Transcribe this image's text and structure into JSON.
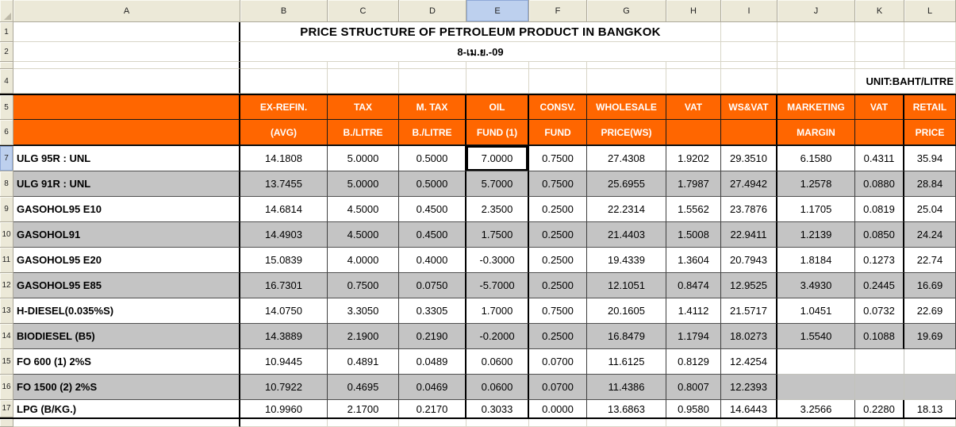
{
  "sheet": {
    "columns": [
      "A",
      "B",
      "C",
      "D",
      "E",
      "F",
      "G",
      "H",
      "I",
      "J",
      "K",
      "L"
    ],
    "active_column": "E",
    "selected_cell": "E7",
    "row_labels_top": [
      "1",
      "2",
      "",
      "4"
    ],
    "header_row_nums": [
      "5",
      "6"
    ],
    "title": "PRICE STRUCTURE OF PETROLEUM PRODUCT IN BANGKOK",
    "date_label": "8-เม.ย.-09",
    "unit_label": "UNIT:BAHT/LITRE",
    "header": {
      "row5": [
        "EX-REFIN.",
        "TAX",
        "M. TAX",
        "OIL",
        "CONSV.",
        "WHOLESALE",
        "VAT",
        "WS&VAT",
        "MARKETING",
        "VAT",
        "RETAIL"
      ],
      "row6": [
        "(AVG)",
        "B./LITRE",
        "B./LITRE",
        "FUND (1)",
        "FUND",
        "PRICE(WS)",
        "",
        "",
        "MARGIN",
        "",
        "PRICE"
      ]
    },
    "products": [
      {
        "num": "7",
        "name": "ULG 95R : UNL",
        "values": [
          "14.1808",
          "5.0000",
          "0.5000",
          "7.0000",
          "0.7500",
          "27.4308",
          "1.9202",
          "29.3510",
          "6.1580",
          "0.4311",
          "35.94"
        ]
      },
      {
        "num": "8",
        "name": "ULG 91R : UNL",
        "values": [
          "13.7455",
          "5.0000",
          "0.5000",
          "5.7000",
          "0.7500",
          "25.6955",
          "1.7987",
          "27.4942",
          "1.2578",
          "0.0880",
          "28.84"
        ]
      },
      {
        "num": "9",
        "name": "GASOHOL95 E10",
        "values": [
          "14.6814",
          "4.5000",
          "0.4500",
          "2.3500",
          "0.2500",
          "22.2314",
          "1.5562",
          "23.7876",
          "1.1705",
          "0.0819",
          "25.04"
        ]
      },
      {
        "num": "10",
        "name": "GASOHOL91",
        "values": [
          "14.4903",
          "4.5000",
          "0.4500",
          "1.7500",
          "0.2500",
          "21.4403",
          "1.5008",
          "22.9411",
          "1.2139",
          "0.0850",
          "24.24"
        ]
      },
      {
        "num": "11",
        "name": "GASOHOL95 E20",
        "values": [
          "15.0839",
          "4.0000",
          "0.4000",
          "-0.3000",
          "0.2500",
          "19.4339",
          "1.3604",
          "20.7943",
          "1.8184",
          "0.1273",
          "22.74"
        ]
      },
      {
        "num": "12",
        "name": "GASOHOL95 E85",
        "values": [
          "16.7301",
          "0.7500",
          "0.0750",
          "-5.7000",
          "0.2500",
          "12.1051",
          "0.8474",
          "12.9525",
          "3.4930",
          "0.2445",
          "16.69"
        ]
      },
      {
        "num": "13",
        "name": "H-DIESEL(0.035%S)",
        "values": [
          "14.0750",
          "3.3050",
          "0.3305",
          "1.7000",
          "0.7500",
          "20.1605",
          "1.4112",
          "21.5717",
          "1.0451",
          "0.0732",
          "22.69"
        ]
      },
      {
        "num": "14",
        "name": "BIODIESEL (B5)",
        "values": [
          "14.3889",
          "2.1900",
          "0.2190",
          "-0.2000",
          "0.2500",
          "16.8479",
          "1.1794",
          "18.0273",
          "1.5540",
          "0.1088",
          "19.69"
        ]
      },
      {
        "num": "15",
        "name": "FO 600 (1) 2%S",
        "values": [
          "10.9445",
          "0.4891",
          "0.0489",
          "0.0600",
          "0.0700",
          "11.6125",
          "0.8129",
          "12.4254",
          "",
          "",
          ""
        ]
      },
      {
        "num": "16",
        "name": "FO 1500 (2) 2%S",
        "values": [
          "10.7922",
          "0.4695",
          "0.0469",
          "0.0600",
          "0.0700",
          "11.4386",
          "0.8007",
          "12.2393",
          "",
          "",
          ""
        ]
      },
      {
        "num": "17",
        "name": "LPG (B/KG.)",
        "values": [
          "10.9960",
          "2.1700",
          "0.2170",
          "0.3033",
          "0.0000",
          "13.6863",
          "0.9580",
          "14.6443",
          "3.2566",
          "0.2280",
          "18.13"
        ]
      }
    ],
    "annotations": [
      {
        "cell": "B7",
        "color": "red"
      },
      {
        "cell": "B8",
        "color": "red"
      },
      {
        "cell": "B9",
        "color": "red"
      },
      {
        "cell": "B12",
        "color": "red"
      },
      {
        "cell": "E7",
        "color": "red"
      },
      {
        "cell": "E8",
        "color": "red"
      },
      {
        "cell": "E9",
        "color": "pink"
      },
      {
        "cell": "E11",
        "color": "pink"
      },
      {
        "cell": "E12",
        "color": "pink"
      },
      {
        "cell": "J7",
        "color": "pink"
      },
      {
        "cell": "J11",
        "color": "pink"
      },
      {
        "cell": "J12",
        "color": "pink"
      },
      {
        "cell": "L7",
        "color": "pink"
      },
      {
        "cell": "L11",
        "color": "pink"
      },
      {
        "cell": "L12",
        "color": "pink"
      }
    ],
    "colors": {
      "header_orange": "#FF6600",
      "stripe_gray": "#C4C4C4",
      "annotation_red": "#CC3528",
      "annotation_pink": "#EA1E8C",
      "active_header_blue": "#BDD0EE"
    }
  }
}
